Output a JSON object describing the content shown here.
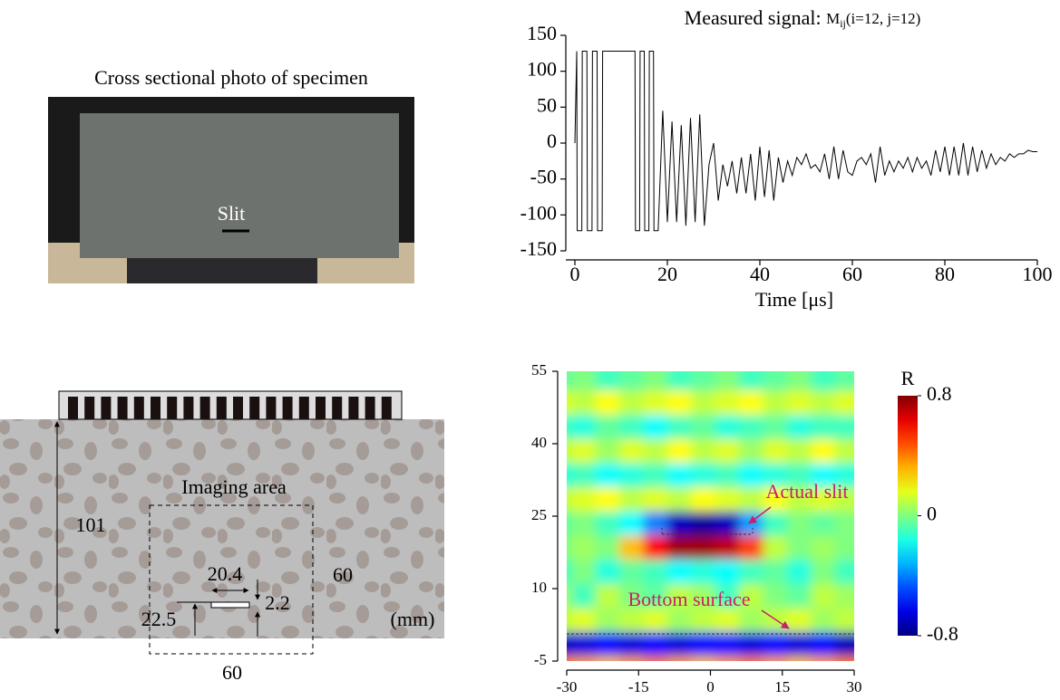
{
  "photo": {
    "caption": "Cross sectional photo of specimen",
    "slit_label": "Slit"
  },
  "diagram": {
    "area_label": "Imaging area",
    "height": "101",
    "area_height": "60",
    "area_width": "60",
    "slit_width": "20.4",
    "slit_thickness": "2.2",
    "slit_depth": "22.5",
    "unit": "(mm)"
  },
  "chart_data": [
    {
      "type": "line",
      "title": "Measured signal:",
      "title_symbol": "M",
      "title_subscript": "ij",
      "title_args": "(i=12, j=12)",
      "xlabel": "Time [μs]",
      "xlim": [
        0,
        100
      ],
      "xticks": [
        0,
        20,
        40,
        60,
        80,
        100
      ],
      "ylim": [
        -150,
        150
      ],
      "yticks": [
        150,
        100,
        50,
        0,
        -50,
        -100,
        -150
      ],
      "x": [
        0,
        0.4,
        0.5,
        1.5,
        1.6,
        2.6,
        2.7,
        3.7,
        3.8,
        4.8,
        4.9,
        5.9,
        6,
        13,
        13.1,
        14,
        14.1,
        15,
        15.1,
        16,
        16.1,
        17,
        17.1,
        18,
        19,
        20,
        21,
        22,
        23,
        24,
        25,
        26,
        27,
        28,
        29,
        30,
        31,
        32,
        33,
        34,
        35,
        36,
        37,
        38,
        39,
        40,
        41,
        42,
        43,
        44,
        45,
        46,
        47,
        48,
        49,
        50,
        51,
        52,
        53,
        54,
        55,
        56,
        57,
        58,
        59,
        60,
        61,
        62,
        63,
        64,
        65,
        66,
        67,
        68,
        69,
        70,
        71,
        72,
        73,
        74,
        75,
        76,
        77,
        78,
        79,
        80,
        81,
        82,
        83,
        84,
        85,
        86,
        87,
        88,
        89,
        90,
        91,
        92,
        93,
        94,
        95,
        96,
        97,
        98,
        99,
        100
      ],
      "series": [
        {
          "name": "M",
          "color": "#000000",
          "values": [
            0,
            128,
            -122,
            -122,
            128,
            128,
            -122,
            -122,
            128,
            128,
            -122,
            -122,
            128,
            128,
            -122,
            -122,
            128,
            128,
            -122,
            -122,
            128,
            128,
            -122,
            -122,
            45,
            -110,
            30,
            -110,
            25,
            -115,
            35,
            -110,
            40,
            -115,
            -30,
            0,
            -80,
            -30,
            -60,
            -25,
            -70,
            -20,
            -70,
            -15,
            -80,
            -5,
            -75,
            -10,
            -80,
            -20,
            -55,
            -25,
            -45,
            -20,
            -30,
            -15,
            -35,
            -30,
            -40,
            -15,
            -50,
            -5,
            -50,
            -10,
            -40,
            -45,
            -25,
            -20,
            -30,
            -15,
            -55,
            -5,
            -45,
            -25,
            -40,
            -25,
            -35,
            -20,
            -40,
            -20,
            -35,
            -25,
            -45,
            -10,
            -40,
            -5,
            -45,
            -5,
            -45,
            0,
            -45,
            -5,
            -40,
            -10,
            -35,
            -15,
            -30,
            -20,
            -25,
            -15,
            -20,
            -15,
            -15,
            -10,
            -12,
            -12
          ]
        }
      ]
    },
    {
      "type": "heatmap",
      "xlim": [
        -30,
        30
      ],
      "xticks": [
        -30,
        -15,
        0,
        15,
        30
      ],
      "ylim": [
        -5,
        55
      ],
      "yticks": [
        -5,
        10,
        25,
        40,
        55
      ],
      "x": [
        -30,
        -25,
        -20,
        -15,
        -10,
        -5,
        0,
        5,
        10,
        15,
        20,
        25,
        30
      ],
      "y": [
        -5,
        0,
        5,
        10,
        15,
        20,
        25,
        30,
        35,
        40,
        45,
        50,
        55
      ],
      "values": [
        [
          0.4,
          0.35,
          0.3,
          0.35,
          0.4,
          0.35,
          0.3,
          0.35,
          0.4,
          0.35,
          0.3,
          0.35,
          0.4
        ],
        [
          -0.7,
          -0.65,
          -0.6,
          -0.65,
          -0.6,
          -0.65,
          -0.6,
          -0.6,
          -0.65,
          -0.6,
          -0.65,
          -0.6,
          -0.7
        ],
        [
          0.1,
          0.15,
          0.05,
          0.1,
          0.15,
          0.05,
          0.1,
          0.15,
          0.05,
          0.1,
          0.15,
          0.05,
          0.1
        ],
        [
          0.05,
          -0.1,
          0.1,
          0.0,
          -0.05,
          0.1,
          0.05,
          -0.1,
          0.1,
          0.0,
          -0.05,
          0.1,
          0.05
        ],
        [
          -0.1,
          0.0,
          -0.15,
          -0.05,
          -0.1,
          -0.2,
          -0.15,
          -0.2,
          -0.1,
          -0.05,
          -0.15,
          0.0,
          -0.1
        ],
        [
          0.0,
          0.05,
          0.0,
          0.3,
          0.6,
          0.75,
          0.75,
          0.7,
          0.5,
          0.1,
          0.0,
          0.05,
          0.0
        ],
        [
          -0.05,
          0.0,
          -0.1,
          -0.2,
          -0.4,
          -0.7,
          -0.75,
          -0.7,
          -0.35,
          -0.1,
          0.0,
          -0.05,
          0.0
        ],
        [
          0.1,
          0.15,
          0.2,
          0.1,
          0.15,
          0.1,
          0.2,
          0.15,
          0.1,
          0.2,
          0.1,
          0.15,
          0.1
        ],
        [
          -0.15,
          -0.1,
          -0.2,
          -0.15,
          -0.1,
          -0.2,
          -0.15,
          -0.1,
          -0.2,
          -0.15,
          -0.1,
          -0.2,
          -0.15
        ],
        [
          0.1,
          0.15,
          0.05,
          0.15,
          0.1,
          0.2,
          0.1,
          0.15,
          0.05,
          0.15,
          0.1,
          0.2,
          0.1
        ],
        [
          -0.1,
          -0.15,
          -0.05,
          -0.1,
          -0.2,
          -0.1,
          -0.05,
          -0.15,
          -0.1,
          -0.05,
          -0.15,
          -0.1,
          -0.1
        ],
        [
          0.15,
          0.1,
          0.2,
          0.1,
          0.15,
          0.2,
          0.1,
          0.15,
          0.2,
          0.1,
          0.15,
          0.1,
          0.15
        ],
        [
          -0.05,
          0.0,
          -0.1,
          -0.05,
          0.0,
          -0.1,
          -0.05,
          0.0,
          -0.1,
          -0.05,
          0.0,
          -0.1,
          -0.05
        ]
      ],
      "zlim": [
        -0.8,
        0.8
      ],
      "colorbar_ticks": [
        0.8,
        0,
        -0.8
      ],
      "colorbar_label": "R",
      "annotations": [
        "Actual slit",
        "Bottom surface"
      ]
    }
  ]
}
